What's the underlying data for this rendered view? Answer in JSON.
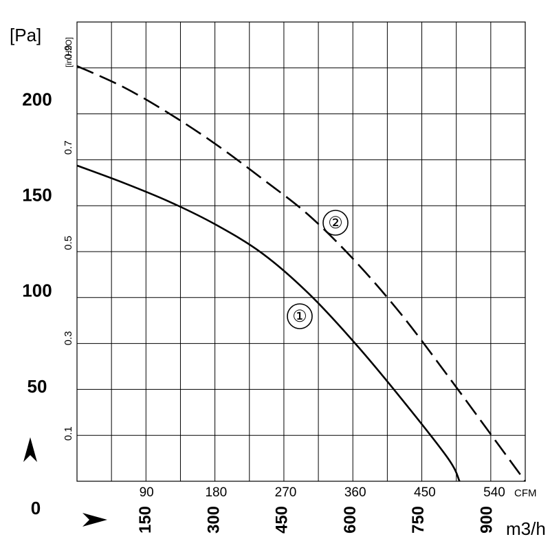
{
  "chart_data": {
    "type": "line",
    "title": "",
    "y_axis_primary": {
      "unit": "[Pa]",
      "ticks": [
        "50",
        "100",
        "150",
        "200"
      ],
      "range": [
        0,
        240
      ]
    },
    "y_axis_secondary": {
      "unit": "[in.H2O]",
      "ticks": [
        "0.1",
        "0.3",
        "0.5",
        "0.7",
        "0.9"
      ]
    },
    "x_axis_primary": {
      "unit": "CFM",
      "ticks": [
        "90",
        "180",
        "270",
        "360",
        "450",
        "540"
      ],
      "range": [
        0,
        580
      ]
    },
    "x_axis_secondary": {
      "unit": "m3/h",
      "ticks": [
        "150",
        "300",
        "450",
        "600",
        "750",
        "900"
      ]
    },
    "origin_label": "0",
    "series": [
      {
        "name": "①",
        "style": "solid",
        "x": [
          0,
          60,
          120,
          180,
          240,
          300,
          360,
          420,
          480,
          495
        ],
        "y": [
          165,
          156,
          146,
          134,
          119,
          98,
          72,
          43,
          12,
          0
        ]
      },
      {
        "name": "②",
        "style": "dashed",
        "x": [
          0,
          60,
          120,
          180,
          240,
          300,
          360,
          420,
          480,
          540,
          580
        ],
        "y": [
          217,
          206,
          192,
          176,
          158,
          139,
          115,
          87,
          55,
          22,
          0
        ]
      }
    ],
    "grid": true
  }
}
